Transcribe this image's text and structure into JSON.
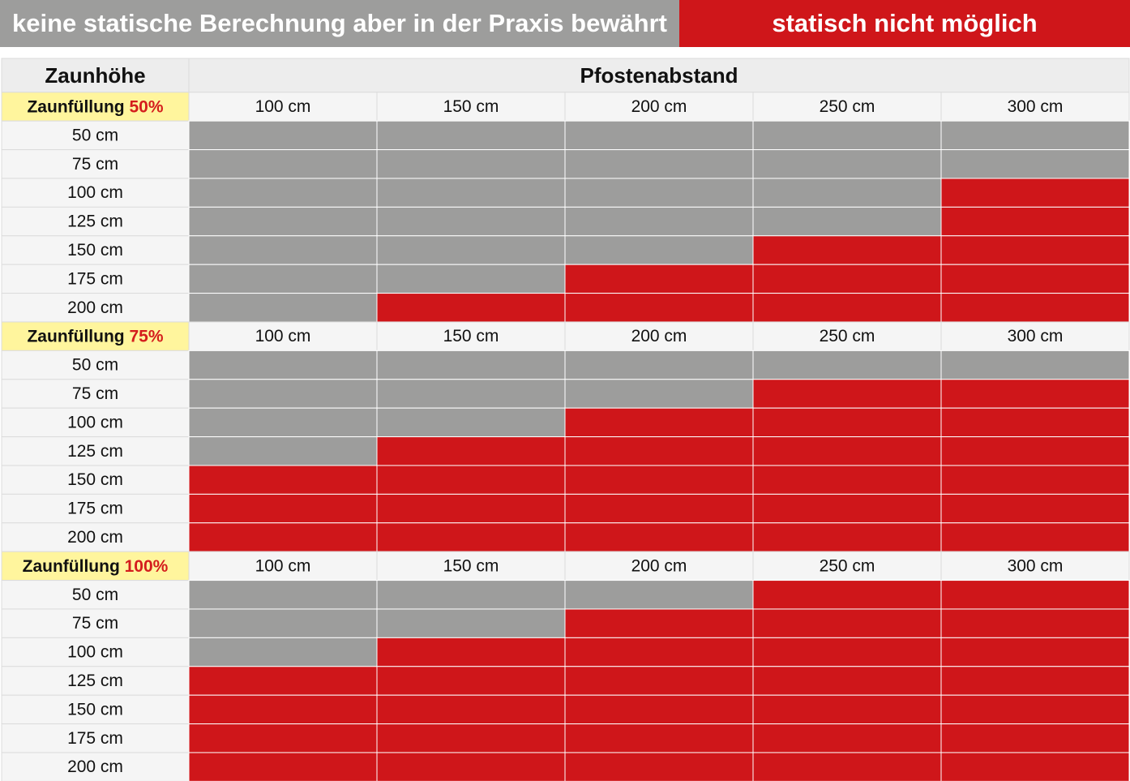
{
  "legend": {
    "gray_label": "keine statische Berechnung aber in der Praxis bewährt",
    "red_label": "statisch nicht möglich"
  },
  "colors": {
    "gray": "#9d9d9c",
    "red": "#cf161a",
    "header_bg": "#f5f5f5",
    "row_header_bg": "#f5f5f5",
    "title_bg": "#ededed",
    "highlight_bg": "#fff59d",
    "highlight_text": "#d41d1d",
    "grid": "#dcdcdc"
  },
  "chart_data": {
    "type": "table",
    "row_header_title": "Zaunhöhe",
    "column_header_title": "Pfostenabstand",
    "columns": [
      "100 cm",
      "150 cm",
      "200 cm",
      "250 cm",
      "300 cm"
    ],
    "rows": [
      "50 cm",
      "75 cm",
      "100 cm",
      "125 cm",
      "150 cm",
      "175 cm",
      "200 cm"
    ],
    "status_legend": {
      "gray": "keine statische Berechnung aber in der Praxis bewährt",
      "red": "statisch nicht möglich"
    },
    "groups": [
      {
        "label": "Zaunfüllung",
        "fill": "50%",
        "cells": [
          [
            "gray",
            "gray",
            "gray",
            "gray",
            "gray"
          ],
          [
            "gray",
            "gray",
            "gray",
            "gray",
            "gray"
          ],
          [
            "gray",
            "gray",
            "gray",
            "gray",
            "red"
          ],
          [
            "gray",
            "gray",
            "gray",
            "gray",
            "red"
          ],
          [
            "gray",
            "gray",
            "gray",
            "red",
            "red"
          ],
          [
            "gray",
            "gray",
            "red",
            "red",
            "red"
          ],
          [
            "gray",
            "red",
            "red",
            "red",
            "red"
          ]
        ]
      },
      {
        "label": "Zaunfüllung",
        "fill": "75%",
        "cells": [
          [
            "gray",
            "gray",
            "gray",
            "gray",
            "gray"
          ],
          [
            "gray",
            "gray",
            "gray",
            "red",
            "red"
          ],
          [
            "gray",
            "gray",
            "red",
            "red",
            "red"
          ],
          [
            "gray",
            "red",
            "red",
            "red",
            "red"
          ],
          [
            "red",
            "red",
            "red",
            "red",
            "red"
          ],
          [
            "red",
            "red",
            "red",
            "red",
            "red"
          ],
          [
            "red",
            "red",
            "red",
            "red",
            "red"
          ]
        ]
      },
      {
        "label": "Zaunfüllung",
        "fill": "100%",
        "cells": [
          [
            "gray",
            "gray",
            "gray",
            "red",
            "red"
          ],
          [
            "gray",
            "gray",
            "red",
            "red",
            "red"
          ],
          [
            "gray",
            "red",
            "red",
            "red",
            "red"
          ],
          [
            "red",
            "red",
            "red",
            "red",
            "red"
          ],
          [
            "red",
            "red",
            "red",
            "red",
            "red"
          ],
          [
            "red",
            "red",
            "red",
            "red",
            "red"
          ],
          [
            "red",
            "red",
            "red",
            "red",
            "red"
          ]
        ]
      }
    ]
  }
}
